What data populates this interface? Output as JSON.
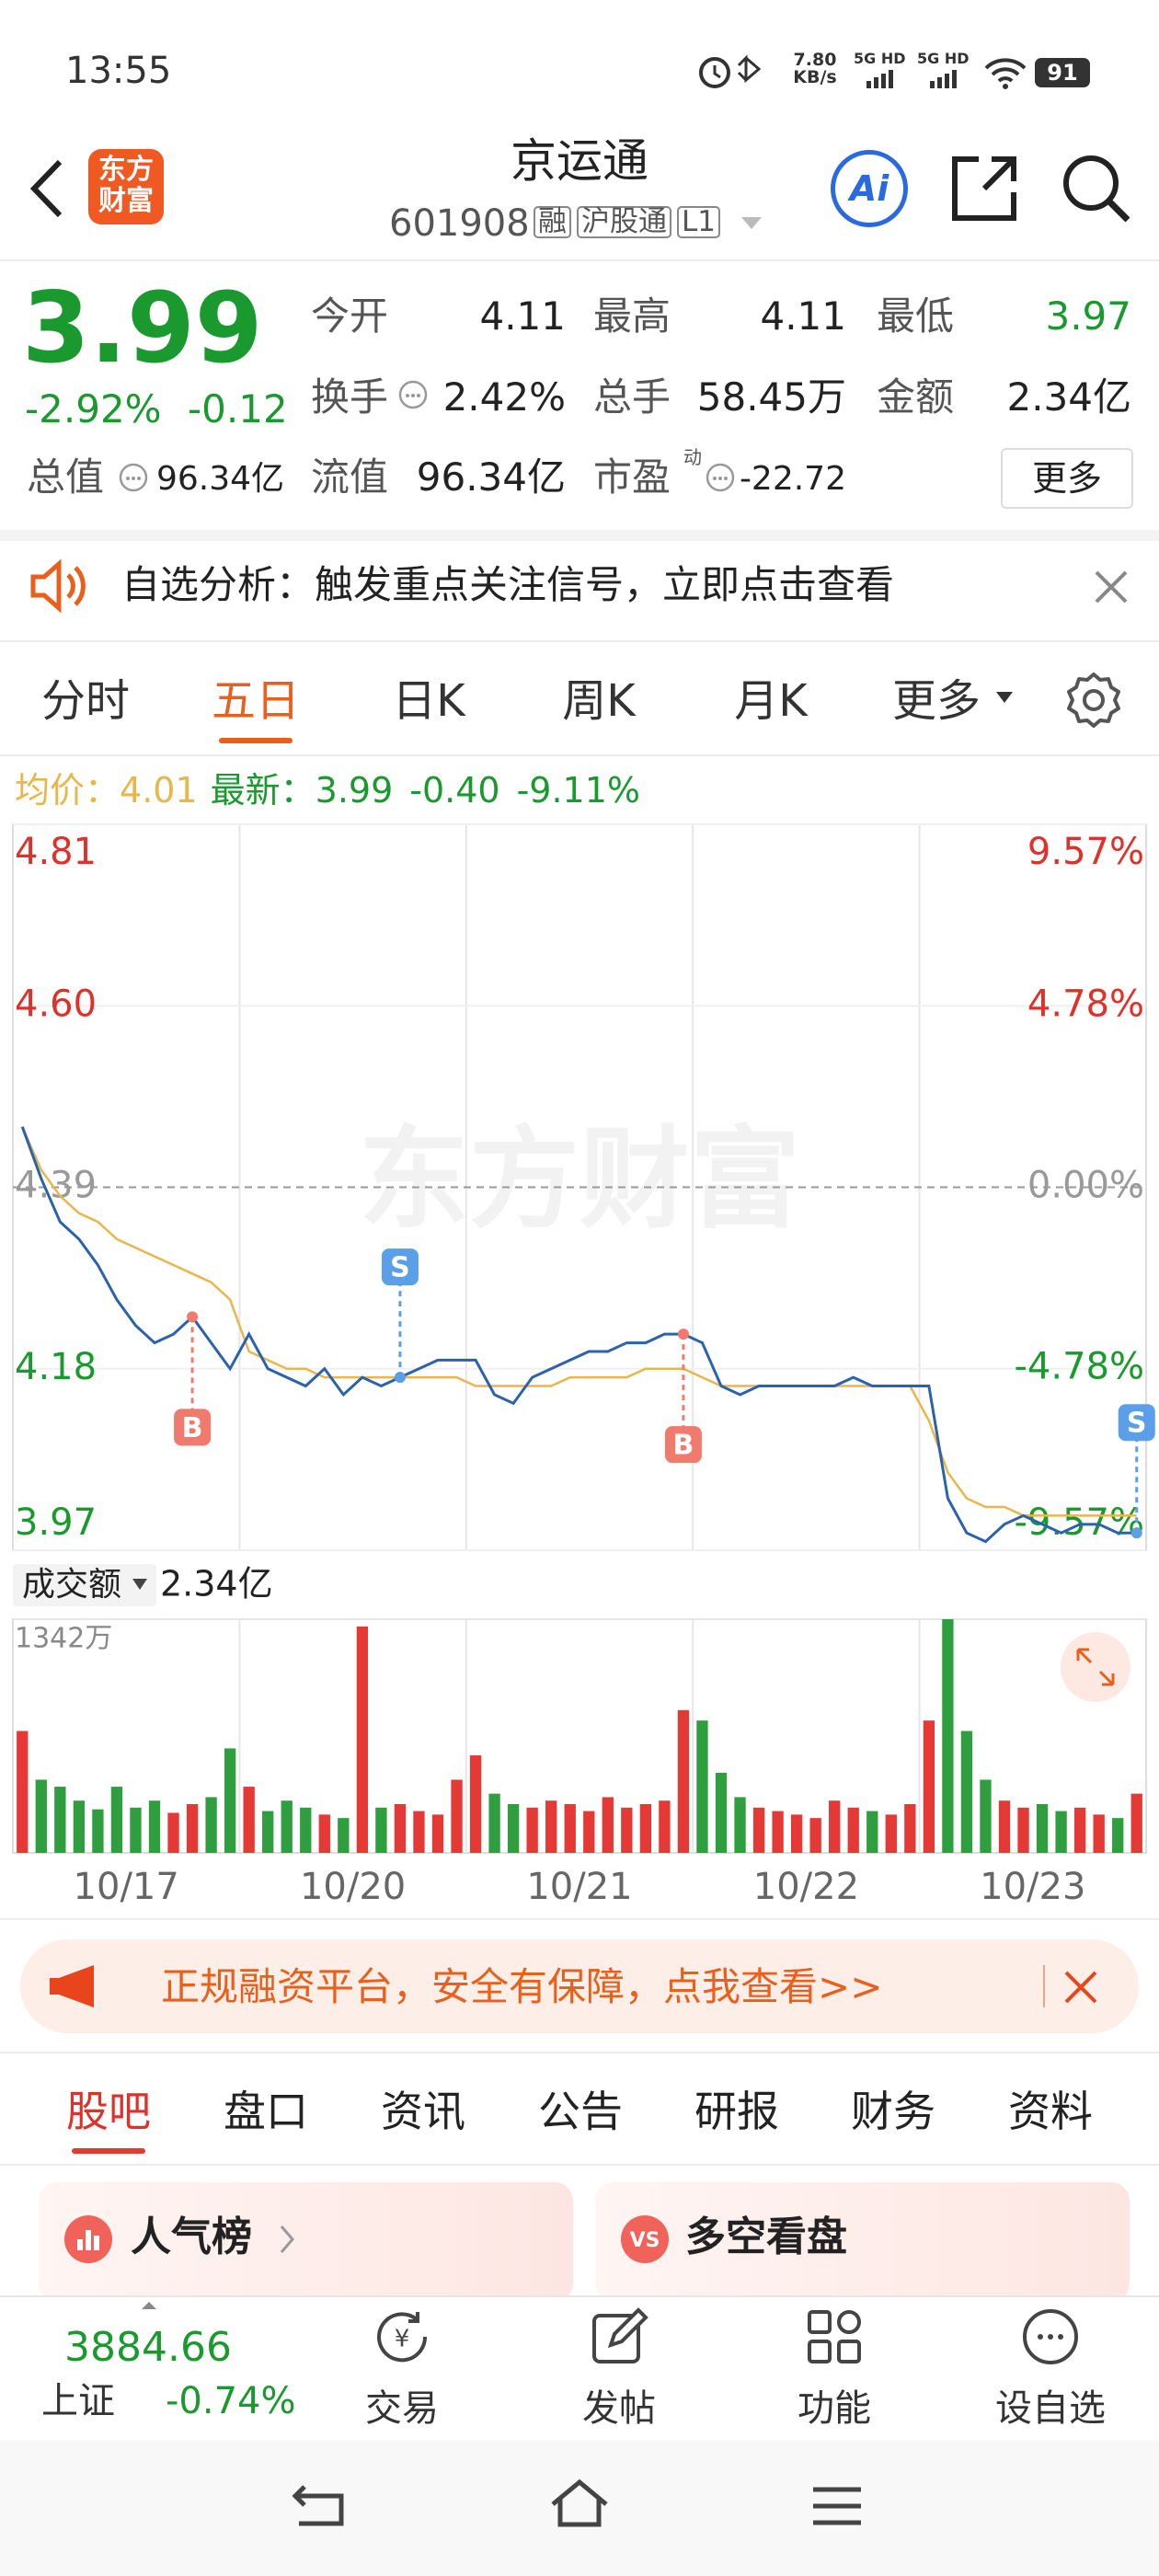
{
  "status": {
    "time": "13:55",
    "speed_value": "7.80",
    "speed_unit": "KB/s",
    "signal1": "5G HD",
    "signal2": "5G HD",
    "battery": "91"
  },
  "nav": {
    "logo_top": "东方",
    "logo_bottom": "财富",
    "title": "京运通",
    "code": "601908",
    "tags": [
      "融",
      "沪股通",
      "L1"
    ],
    "ai": "Ai"
  },
  "quote": {
    "price": "3.99",
    "change_pct": "-2.92%",
    "change": "-0.12",
    "fields": [
      [
        "今开",
        "4.11"
      ],
      [
        "最高",
        "4.11"
      ],
      [
        "最低",
        "3.97"
      ],
      [
        "换手",
        "2.42%"
      ],
      [
        "总手",
        "58.45万"
      ],
      [
        "金额",
        "2.34亿"
      ],
      [
        "总值",
        "96.34亿"
      ],
      [
        "流值",
        "96.34亿"
      ],
      [
        "市盈",
        "-22.72"
      ]
    ],
    "pe_mark": "动",
    "more": "更多"
  },
  "banner": {
    "text": "自选分析：触发重点关注信号，立即点击查看"
  },
  "tabs": [
    "分时",
    "五日",
    "日K",
    "周K",
    "月K",
    "更多"
  ],
  "chart_data": [
    {
      "type": "line",
      "avg_label": "均价：",
      "avg_value": "4.01",
      "last_label": "最新：",
      "last_value": "3.99",
      "last_change": "-0.40",
      "last_pct": "-9.11%",
      "watermark": "东方财富",
      "ylim": [
        3.97,
        4.81
      ],
      "yticks": [
        3.97,
        4.18,
        4.39,
        {
          "value": 4.6,
          "label": "4.60"
        },
        4.81
      ],
      "y2lim": [
        -9.57,
        9.57
      ],
      "y2ticks": [
        {
          "value": -9.57,
          "label": "-9.57%"
        },
        {
          "value": -4.78,
          "label": "-4.78%"
        },
        {
          "value": 0,
          "label": "0.00%"
        },
        {
          "value": 4.78,
          "label": "4.78%"
        },
        {
          "value": 9.57,
          "label": "9.57%"
        }
      ],
      "series": [
        {
          "color": "#2b62ad",
          "values": [
            4.46,
            4.4,
            4.35,
            4.33,
            4.3,
            4.26,
            4.23,
            4.21,
            4.22,
            4.24,
            4.21,
            4.18,
            4.22,
            4.18,
            4.17,
            4.16,
            4.18,
            4.15,
            4.17,
            4.16,
            4.17,
            4.18,
            4.19,
            4.19,
            4.19,
            4.15,
            4.14,
            4.17,
            4.18,
            4.19,
            4.2,
            4.2,
            4.21,
            4.21,
            4.22,
            4.22,
            4.21,
            4.16,
            4.15,
            4.16,
            4.16,
            4.16,
            4.16,
            4.16,
            4.17,
            4.16,
            4.16,
            4.16,
            4.16,
            4.03,
            3.99,
            3.98,
            4.0,
            4.01,
            4.0,
            3.99,
            4.0,
            4.0,
            3.99,
            3.99
          ]
        },
        {
          "color": "#e9b64a",
          "values": [
            4.46,
            4.41,
            4.38,
            4.36,
            4.35,
            4.33,
            4.32,
            4.31,
            4.3,
            4.29,
            4.28,
            4.26,
            4.2,
            4.19,
            4.18,
            4.18,
            4.17,
            4.17,
            4.17,
            4.17,
            4.17,
            4.17,
            4.17,
            4.17,
            4.16,
            4.16,
            4.16,
            4.16,
            4.16,
            4.17,
            4.17,
            4.17,
            4.17,
            4.18,
            4.18,
            4.18,
            4.17,
            4.16,
            4.16,
            4.16,
            4.16,
            4.16,
            4.16,
            4.16,
            4.16,
            4.16,
            4.16,
            4.16,
            4.12,
            4.06,
            4.03,
            4.02,
            4.02,
            4.01,
            4.01,
            4.01,
            4.01,
            4.01,
            4.01,
            4.01
          ]
        }
      ],
      "annotations": [
        {
          "label": "B",
          "x": 9
        },
        {
          "label": "S",
          "x": 20
        },
        {
          "label": "B",
          "x": 35
        },
        {
          "label": "S",
          "x": 59
        }
      ],
      "buy_color": "#f07a6e",
      "sell_color": "#5a9fe8"
    },
    {
      "type": "bar",
      "title": "成交额",
      "total": "2.34亿",
      "up_color": "#e53935",
      "down_color": "#2e9e3e",
      "values": [
        700,
        420,
        380,
        300,
        250,
        380,
        260,
        300,
        230,
        280,
        320,
        600,
        380,
        240,
        300,
        260,
        220,
        200,
        1300,
        260,
        280,
        240,
        220,
        420,
        560,
        340,
        280,
        260,
        300,
        280,
        240,
        320,
        260,
        280,
        300,
        820,
        760,
        460,
        320,
        260,
        240,
        220,
        200,
        300,
        260,
        240,
        220,
        280,
        760,
        1342,
        700,
        420,
        300,
        260,
        280,
        240,
        260,
        220,
        200,
        340
      ],
      "ylim": [
        0,
        1342
      ],
      "yticks": [
        {
          "value": 1342,
          "label": "1342万"
        }
      ],
      "xticks": [
        {
          "value": 5.5,
          "label": "10/17"
        },
        {
          "value": 17.5,
          "label": "10/20"
        },
        {
          "value": 29.5,
          "label": "10/21"
        },
        {
          "value": 41.5,
          "label": "10/22"
        },
        {
          "value": 53.5,
          "label": "10/23"
        }
      ]
    }
  ],
  "ad": {
    "text": "正规融资平台，安全有保障，点我查看>>"
  },
  "tabs2": [
    "股吧",
    "盘口",
    "资讯",
    "公告",
    "研报",
    "财务",
    "资料"
  ],
  "cards": [
    "人气榜",
    "多空看盘"
  ],
  "bottom": {
    "index_value": "3884.66",
    "index_name": "上证",
    "index_pct": "-0.74%",
    "items": [
      "交易",
      "发帖",
      "功能",
      "设自选"
    ]
  }
}
